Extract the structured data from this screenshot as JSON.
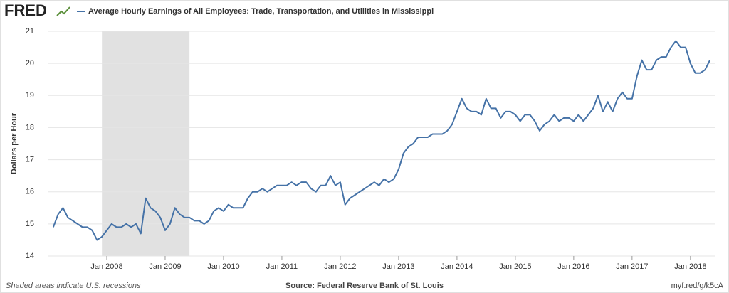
{
  "logo": "FRED",
  "chart_data": {
    "type": "line",
    "series": [
      {
        "name": "Average Hourly Earnings of All Employees: Trade, Transportation, and Utilities in Mississippi",
        "color": "#4572a7",
        "values": [
          14.9,
          15.3,
          15.5,
          15.2,
          15.1,
          15.0,
          14.9,
          14.9,
          14.8,
          14.5,
          14.6,
          14.8,
          15.0,
          14.9,
          14.9,
          15.0,
          14.9,
          15.0,
          14.7,
          15.8,
          15.5,
          15.4,
          15.2,
          14.8,
          15.0,
          15.5,
          15.3,
          15.2,
          15.2,
          15.1,
          15.1,
          15.0,
          15.1,
          15.4,
          15.5,
          15.4,
          15.6,
          15.5,
          15.5,
          15.5,
          15.8,
          16.0,
          16.0,
          16.1,
          16.0,
          16.1,
          16.2,
          16.2,
          16.2,
          16.3,
          16.2,
          16.3,
          16.3,
          16.1,
          16.0,
          16.2,
          16.2,
          16.5,
          16.2,
          16.3,
          15.6,
          15.8,
          15.9,
          16.0,
          16.1,
          16.2,
          16.3,
          16.2,
          16.4,
          16.3,
          16.4,
          16.7,
          17.2,
          17.4,
          17.5,
          17.7,
          17.7,
          17.7,
          17.8,
          17.8,
          17.8,
          17.9,
          18.1,
          18.5,
          18.9,
          18.6,
          18.5,
          18.5,
          18.4,
          18.9,
          18.6,
          18.6,
          18.3,
          18.5,
          18.5,
          18.4,
          18.2,
          18.4,
          18.4,
          18.2,
          17.9,
          18.1,
          18.2,
          18.4,
          18.2,
          18.3,
          18.3,
          18.2,
          18.4,
          18.2,
          18.4,
          18.6,
          19.0,
          18.5,
          18.8,
          18.5,
          18.9,
          19.1,
          18.9,
          18.9,
          19.6,
          20.1,
          19.8,
          19.8,
          20.1,
          20.2,
          20.2,
          20.5,
          20.7,
          20.5,
          20.5,
          20.0,
          19.7,
          19.7,
          19.8,
          20.1
        ]
      }
    ],
    "x": [
      "2007-02",
      "2007-03",
      "2007-04",
      "2007-05",
      "2007-06",
      "2007-07",
      "2007-08",
      "2007-09",
      "2007-10",
      "2007-11",
      "2007-12",
      "2008-01",
      "2008-02",
      "2008-03",
      "2008-04",
      "2008-05",
      "2008-06",
      "2008-07",
      "2008-08",
      "2008-09",
      "2008-10",
      "2008-11",
      "2008-12",
      "2009-01",
      "2009-02",
      "2009-03",
      "2009-04",
      "2009-05",
      "2009-06",
      "2009-07",
      "2009-08",
      "2009-09",
      "2009-10",
      "2009-11",
      "2009-12",
      "2010-01",
      "2010-02",
      "2010-03",
      "2010-04",
      "2010-05",
      "2010-06",
      "2010-07",
      "2010-08",
      "2010-09",
      "2010-10",
      "2010-11",
      "2010-12",
      "2011-01",
      "2011-02",
      "2011-03",
      "2011-04",
      "2011-05",
      "2011-06",
      "2011-07",
      "2011-08",
      "2011-09",
      "2011-10",
      "2011-11",
      "2011-12",
      "2012-01",
      "2012-02",
      "2012-03",
      "2012-04",
      "2012-05",
      "2012-06",
      "2012-07",
      "2012-08",
      "2012-09",
      "2012-10",
      "2012-11",
      "2012-12",
      "2013-01",
      "2013-02",
      "2013-03",
      "2013-04",
      "2013-05",
      "2013-06",
      "2013-07",
      "2013-08",
      "2013-09",
      "2013-10",
      "2013-11",
      "2013-12",
      "2014-01",
      "2014-02",
      "2014-03",
      "2014-04",
      "2014-05",
      "2014-06",
      "2014-07",
      "2014-08",
      "2014-09",
      "2014-10",
      "2014-11",
      "2014-12",
      "2015-01",
      "2015-02",
      "2015-03",
      "2015-04",
      "2015-05",
      "2015-06",
      "2015-07",
      "2015-08",
      "2015-09",
      "2015-10",
      "2015-11",
      "2015-12",
      "2016-01",
      "2016-02",
      "2016-03",
      "2016-04",
      "2016-05",
      "2016-06",
      "2016-07",
      "2016-08",
      "2016-09",
      "2016-10",
      "2016-11",
      "2016-12",
      "2017-01",
      "2017-02",
      "2017-03",
      "2017-04",
      "2017-05",
      "2017-06",
      "2017-07",
      "2017-08",
      "2017-09",
      "2017-10",
      "2017-11",
      "2017-12",
      "2018-01",
      "2018-02",
      "2018-03",
      "2018-04",
      "2018-05"
    ],
    "xlim": [
      "2007-01",
      "2018-06"
    ],
    "xticks": [
      {
        "value": "2008-01",
        "label": "Jan 2008"
      },
      {
        "value": "2009-01",
        "label": "Jan 2009"
      },
      {
        "value": "2010-01",
        "label": "Jan 2010"
      },
      {
        "value": "2011-01",
        "label": "Jan 2011"
      },
      {
        "value": "2012-01",
        "label": "Jan 2012"
      },
      {
        "value": "2013-01",
        "label": "Jan 2013"
      },
      {
        "value": "2014-01",
        "label": "Jan 2014"
      },
      {
        "value": "2015-01",
        "label": "Jan 2015"
      },
      {
        "value": "2016-01",
        "label": "Jan 2016"
      },
      {
        "value": "2017-01",
        "label": "Jan 2017"
      },
      {
        "value": "2018-01",
        "label": "Jan 2018"
      }
    ],
    "ylim": [
      14,
      21
    ],
    "yticks": [
      14,
      15,
      16,
      17,
      18,
      19,
      20,
      21
    ],
    "y_label": "Dollars per Hour",
    "grid": true,
    "recessions": [
      {
        "start": "2007-12",
        "end": "2009-06"
      }
    ],
    "recession_note": "Shaded areas indicate U.S. recessions",
    "source": "Source: Federal Reserve Bank of St. Louis",
    "link": "myf.red/g/k5cA"
  }
}
